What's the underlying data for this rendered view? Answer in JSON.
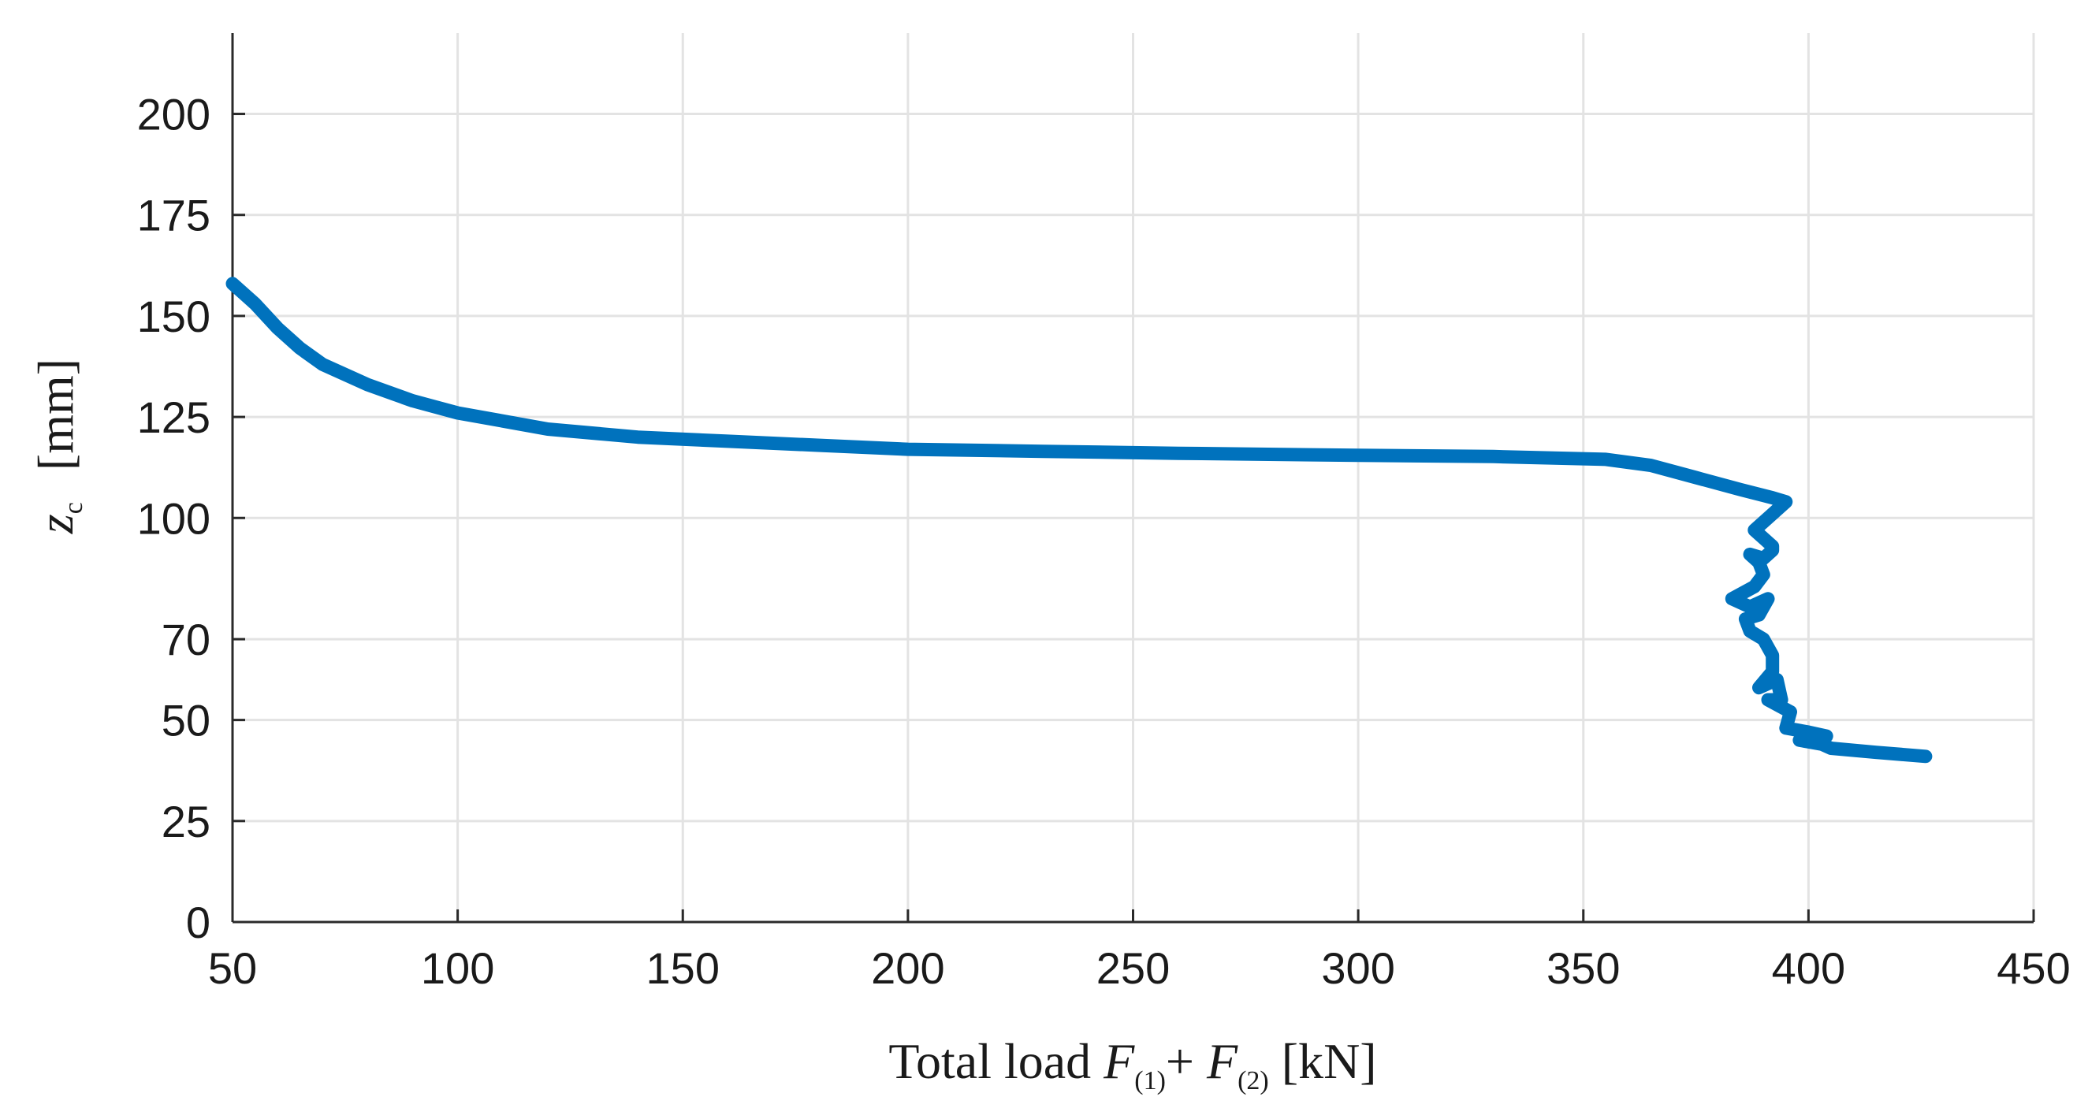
{
  "chart_data": {
    "type": "line",
    "title": "",
    "xlabel": {
      "prefix": "Total load ",
      "var1": "F",
      "sub1": "(1)",
      "plus": "+ ",
      "var2": "F",
      "sub2": "(2)",
      "unit": " [kN]"
    },
    "ylabel": {
      "var": "z",
      "sub": "c",
      "unit": "[mm]"
    },
    "xlim": [
      50,
      450
    ],
    "ylim": [
      0,
      220
    ],
    "xticks": [
      50,
      100,
      150,
      200,
      250,
      300,
      350,
      400,
      450
    ],
    "yticks": [
      0,
      25,
      50,
      70,
      100,
      125,
      150,
      175,
      200
    ],
    "grid": true,
    "series": [
      {
        "name": "z_c",
        "color": "#0072BD",
        "x": [
          50,
          55,
          60,
          65,
          70,
          80,
          90,
          100,
          110,
          120,
          140,
          160,
          180,
          200,
          230,
          260,
          300,
          330,
          355,
          365,
          375,
          385,
          392,
          395,
          391,
          388,
          392,
          392,
          390,
          387,
          389,
          390,
          388,
          383,
          387,
          391,
          389,
          386,
          387,
          390,
          392,
          392,
          389,
          393,
          394,
          391,
          396,
          395,
          400,
          404,
          398,
          403,
          405,
          415,
          426
        ],
        "y": [
          158,
          153,
          147,
          142,
          138,
          133,
          129,
          126,
          124,
          122,
          120,
          119,
          118,
          117,
          116.5,
          116,
          115.5,
          115.2,
          114.5,
          113,
          110,
          107,
          105,
          104,
          100,
          97,
          93,
          92,
          90,
          91,
          89,
          86,
          83,
          80,
          78,
          80,
          76,
          75,
          72,
          70,
          66,
          62,
          58,
          60,
          55,
          55,
          52,
          48,
          47,
          46,
          45,
          44,
          43,
          42,
          41
        ]
      }
    ]
  }
}
